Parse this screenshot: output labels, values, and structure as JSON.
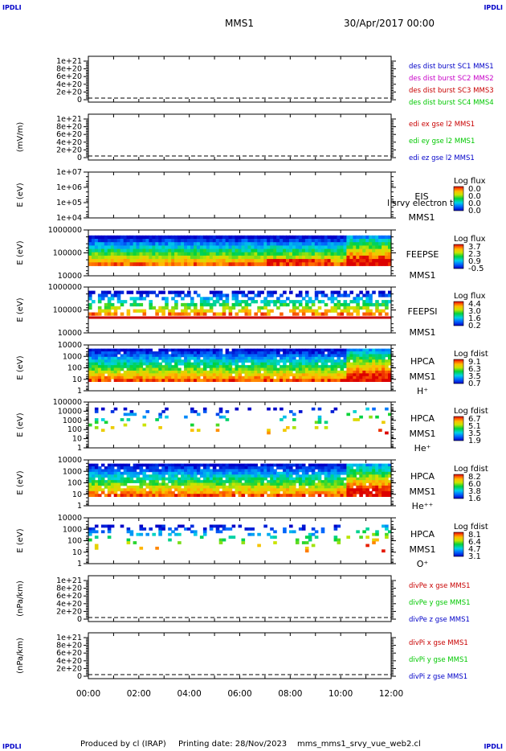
{
  "header": {
    "left_corner": "IPDLI",
    "right_corner": "IPDLI",
    "title": "MMS1",
    "datetime": "30/Apr/2017 00:00",
    "bottom_left_corner": "IPDLI",
    "bottom_right_corner": "IPDLI"
  },
  "footer": {
    "produced": "Produced by cl (IRAP)",
    "printing": "Printing date: 28/Nov/2023",
    "file": "mms_mms1_srvy_vue_web2.cl"
  },
  "time_axis": {
    "ticks": [
      "00:00",
      "02:00",
      "04:00",
      "06:00",
      "08:00",
      "10:00",
      "12:00"
    ],
    "range_hours": [
      0,
      12
    ]
  },
  "colors": {
    "c_blue": "#0000c8",
    "c_magenta": "#c800c8",
    "c_red": "#c80000",
    "c_green": "#00c800"
  },
  "chart_data": [
    {
      "type": "line",
      "name": "des-dist-burst",
      "ylabel": "",
      "ytick_labels": [
        "1e+21",
        "8e+20",
        "6e+20",
        "4e+20",
        "2e+20",
        "0"
      ],
      "legend": [
        {
          "text": "des dist burst SC1 MMS1",
          "color": "#0000c8"
        },
        {
          "text": "des dist burst SC2 MMS2",
          "color": "#c800c8"
        },
        {
          "text": "des dist burst SC3 MMS3",
          "color": "#c80000"
        },
        {
          "text": "des dist burst SC4 MMS4",
          "color": "#00c800"
        }
      ]
    },
    {
      "type": "line",
      "name": "edi-e-gse",
      "ylabel": "(mV/m)",
      "ytick_labels": [
        "1e+21",
        "8e+20",
        "6e+20",
        "4e+20",
        "2e+20",
        "0"
      ],
      "legend": [
        {
          "text": "edi ex gse l2 MMS1",
          "color": "#c80000"
        },
        {
          "text": "edi ey gse l2 MMS1",
          "color": "#00c800"
        },
        {
          "text": "edi ez gse l2 MMS1",
          "color": "#0000c8"
        }
      ]
    },
    {
      "type": "heatmap",
      "name": "eis",
      "ylabel": "E (eV)",
      "ytick_labels": [
        "1e+07",
        "1e+06",
        "1e+05",
        "1e+04"
      ],
      "labels": [
        "EIS",
        "MMS1"
      ],
      "overlay_text": "l srvy electron to",
      "colorbar": {
        "title": "Log flux",
        "ticks": [
          "0.0",
          "0.0",
          "0.0",
          "0.0"
        ]
      }
    },
    {
      "type": "heatmap",
      "name": "feeps-e",
      "ylabel": "E (eV)",
      "ytick_labels": [
        "1000000",
        "100000",
        "10000"
      ],
      "labels": [
        "FEEPSE",
        "MMS1"
      ],
      "colorbar": {
        "title": "Log flux",
        "ticks": [
          "3.7",
          "2.3",
          "0.9",
          "-0.5"
        ]
      }
    },
    {
      "type": "heatmap",
      "name": "feeps-i",
      "ylabel": "E (eV)",
      "ytick_labels": [
        "1000000",
        "100000",
        "10000"
      ],
      "labels": [
        "FEEPSI",
        "MMS1"
      ],
      "colorbar": {
        "title": "Log flux",
        "ticks": [
          "4.4",
          "3.0",
          "1.6",
          "0.2"
        ]
      }
    },
    {
      "type": "heatmap",
      "name": "hpca-h",
      "ylabel": "E (eV)",
      "ytick_labels": [
        "10000",
        "1000",
        "100",
        "10",
        "1"
      ],
      "labels": [
        "HPCA",
        "MMS1",
        "H⁺"
      ],
      "colorbar": {
        "title": "Log fdist",
        "ticks": [
          "9.1",
          "6.3",
          "3.5",
          "0.7"
        ]
      }
    },
    {
      "type": "heatmap",
      "name": "hpca-he",
      "ylabel": "E (eV)",
      "ytick_labels": [
        "100000",
        "10000",
        "1000",
        "100",
        "10",
        "1"
      ],
      "labels": [
        "HPCA",
        "MMS1",
        "He⁺"
      ],
      "colorbar": {
        "title": "Log fdist",
        "ticks": [
          "6.7",
          "5.1",
          "3.5",
          "1.9"
        ]
      }
    },
    {
      "type": "heatmap",
      "name": "hpca-he2",
      "ylabel": "E (eV)",
      "ytick_labels": [
        "10000",
        "1000",
        "100",
        "10",
        "1"
      ],
      "labels": [
        "HPCA",
        "MMS1",
        "He⁺⁺"
      ],
      "colorbar": {
        "title": "Log fdist",
        "ticks": [
          "8.2",
          "6.0",
          "3.8",
          "1.6"
        ]
      }
    },
    {
      "type": "heatmap",
      "name": "hpca-o",
      "ylabel": "E (eV)",
      "ytick_labels": [
        "10000",
        "1000",
        "100",
        "10",
        "1"
      ],
      "labels": [
        "HPCA",
        "MMS1",
        "O⁺"
      ],
      "colorbar": {
        "title": "Log fdist",
        "ticks": [
          "8.1",
          "6.4",
          "4.7",
          "3.1"
        ]
      }
    },
    {
      "type": "line",
      "name": "divpe",
      "ylabel": "(nPa/km)",
      "ytick_labels": [
        "1e+21",
        "8e+20",
        "6e+20",
        "4e+20",
        "2e+20",
        "0"
      ],
      "legend": [
        {
          "text": "divPe x gse MMS1",
          "color": "#c80000"
        },
        {
          "text": "divPe y gse MMS1",
          "color": "#00c800"
        },
        {
          "text": "divPe z gse MMS1",
          "color": "#0000c8"
        }
      ]
    },
    {
      "type": "line",
      "name": "divpi",
      "ylabel": "(nPa/km)",
      "ytick_labels": [
        "1e+21",
        "8e+20",
        "6e+20",
        "4e+20",
        "2e+20",
        "0"
      ],
      "legend": [
        {
          "text": "divPi x gse MMS1",
          "color": "#c80000"
        },
        {
          "text": "divPi y gse MMS1",
          "color": "#00c800"
        },
        {
          "text": "divPi z gse MMS1",
          "color": "#0000c8"
        }
      ]
    }
  ]
}
